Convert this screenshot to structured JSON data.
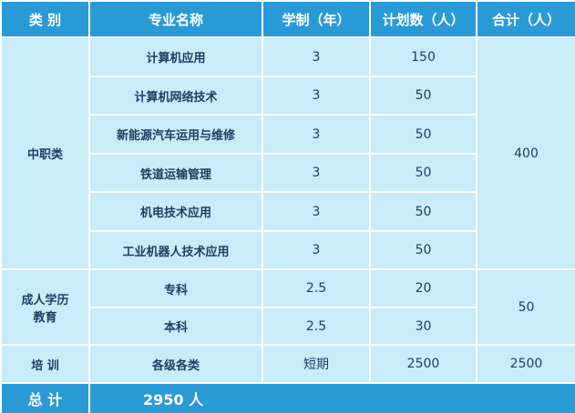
{
  "header": [
    "类 别",
    "专业名称",
    "学制（年）",
    "计划数（人）",
    "合计（人）"
  ],
  "groups": [
    {
      "category": "中职类",
      "total": "400",
      "rows": [
        [
          "计算机应用",
          "3",
          "150"
        ],
        [
          "计算机网络技术",
          "3",
          "50"
        ],
        [
          "新能源汽车运用与维修",
          "3",
          "50"
        ],
        [
          "铁道运输管理",
          "3",
          "50"
        ],
        [
          "机电技术应用",
          "3",
          "50"
        ],
        [
          "工业机器人技术应用",
          "3",
          "50"
        ]
      ]
    },
    {
      "category": "成人学历教育",
      "total": "50",
      "rows": [
        [
          "专科",
          "2.5",
          "20"
        ],
        [
          "本科",
          "2.5",
          "30"
        ]
      ]
    },
    {
      "category": "培 训",
      "total": "2500",
      "rows": [
        [
          "各级各类",
          "短期",
          "2500"
        ]
      ]
    }
  ],
  "footer": {
    "label": "总 计",
    "value": "2950 人"
  }
}
